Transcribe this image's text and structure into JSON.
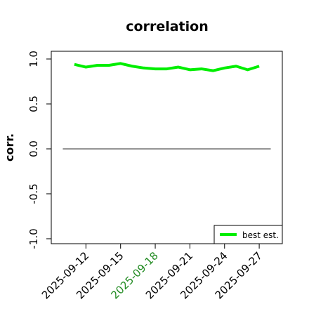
{
  "chart_data": {
    "type": "line",
    "title": "correlation",
    "ylabel": "corr.",
    "x": [
      "2025-09-11",
      "2025-09-12",
      "2025-09-13",
      "2025-09-14",
      "2025-09-15",
      "2025-09-16",
      "2025-09-17",
      "2025-09-18",
      "2025-09-19",
      "2025-09-20",
      "2025-09-21",
      "2025-09-22",
      "2025-09-23",
      "2025-09-24",
      "2025-09-25",
      "2025-09-26",
      "2025-09-27"
    ],
    "series": [
      {
        "name": "best est.",
        "color": "#00ee00",
        "values": [
          0.94,
          0.91,
          0.93,
          0.93,
          0.95,
          0.92,
          0.9,
          0.89,
          0.89,
          0.91,
          0.88,
          0.89,
          0.87,
          0.9,
          0.92,
          0.88,
          0.92
        ]
      }
    ],
    "reference_line": {
      "y": 0,
      "x": [
        "2025-09-10",
        "2025-09-28"
      ],
      "color": "#555555"
    },
    "xlim": [
      "2025-09-09",
      "2025-09-29"
    ],
    "xticks": [
      "2025-09-12",
      "2025-09-15",
      "2025-09-18",
      "2025-09-21",
      "2025-09-24",
      "2025-09-27"
    ],
    "xtick_colors": [
      "#000000",
      "#000000",
      "#228b22",
      "#000000",
      "#000000",
      "#000000"
    ],
    "ylim": [
      -1.055,
      1.086
    ],
    "yticks": [
      {
        "value": -1,
        "label": "-1.0"
      },
      {
        "value": -0.5,
        "label": "-0.5"
      },
      {
        "value": 0,
        "label": "0.0"
      },
      {
        "value": 0.5,
        "label": "0.5"
      },
      {
        "value": 1,
        "label": "1.0"
      }
    ],
    "legend": "bottom-right"
  }
}
